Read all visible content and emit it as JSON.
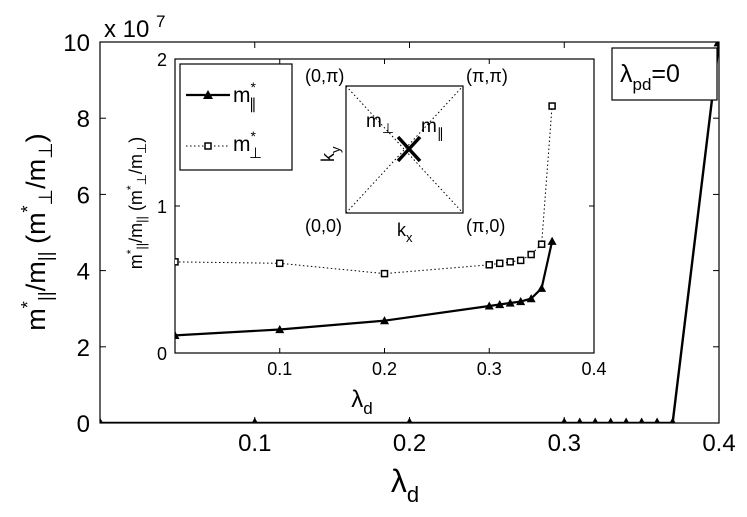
{
  "chart_data": [
    {
      "type": "line",
      "x": [
        0,
        0.1,
        0.2,
        0.3,
        0.31,
        0.32,
        0.33,
        0.34,
        0.35,
        0.36,
        0.37,
        0.4
      ],
      "series": [
        {
          "values": [
            0,
            0,
            0,
            0,
            0,
            0,
            0,
            0,
            0,
            0,
            0,
            100000000
          ]
        }
      ],
      "xlim": [
        0,
        0.4
      ],
      "ylim": [
        0,
        100000000
      ],
      "y_multiplier_label": "x 10",
      "y_multiplier_exp": "7",
      "xticks": [
        "0.1",
        "0.2",
        "0.3",
        "0.4"
      ],
      "yticks": [
        "0",
        "2",
        "4",
        "6",
        "8",
        "10"
      ],
      "grid": false,
      "annotation": "λpd=0"
    },
    {
      "type": "line",
      "x": [
        0,
        0.1,
        0.2,
        0.3,
        0.31,
        0.32,
        0.33,
        0.34,
        0.35,
        0.36
      ],
      "series": [
        {
          "name": "m*∥",
          "marker": "triangle",
          "style": "solid",
          "values": [
            0.12,
            0.16,
            0.22,
            0.32,
            0.33,
            0.34,
            0.35,
            0.37,
            0.44,
            0.76
          ]
        },
        {
          "name": "m*⊥",
          "marker": "square",
          "style": "dotted",
          "values": [
            0.62,
            0.61,
            0.54,
            0.6,
            0.61,
            0.62,
            0.63,
            0.67,
            0.74,
            1.68
          ]
        }
      ],
      "xlim": [
        0,
        0.4
      ],
      "ylim": [
        0,
        2
      ],
      "xticks": [
        "0.1",
        "0.2",
        "0.3",
        "0.4"
      ],
      "yticks": [
        "0",
        "1",
        "2"
      ],
      "legend": "top-left",
      "grid": false
    }
  ],
  "diagram": {
    "corners": [
      "(0,π)",
      "(π,π)",
      "(0,0)",
      "(π,0)"
    ]
  },
  "labels": {
    "annotation_lambda": "λ",
    "annotation_sub": "pd",
    "annotation_value": "=0",
    "main_xlabel_symbol": "λ",
    "main_xlabel_sub": "d",
    "inset_xlabel_symbol": "λ",
    "inset_xlabel_sub": "d",
    "main_ylabel": "m*∥/m∥ (m*⊥/m⊥)",
    "inset_ylabel": "m*∥/m∥ (m*⊥/m⊥)",
    "legend_par_m": "m",
    "legend_par_star": "*",
    "legend_par_sub": "∥",
    "legend_perp_m": "m",
    "legend_perp_star": "*",
    "legend_perp_sub": "⊥",
    "kx_k": "k",
    "kx_sub": "x",
    "ky_k": "k",
    "ky_sub": "y",
    "diag_perp_m": "m",
    "diag_perp_sub": "⊥",
    "diag_par_m": "m",
    "diag_par_sub": "∥"
  }
}
